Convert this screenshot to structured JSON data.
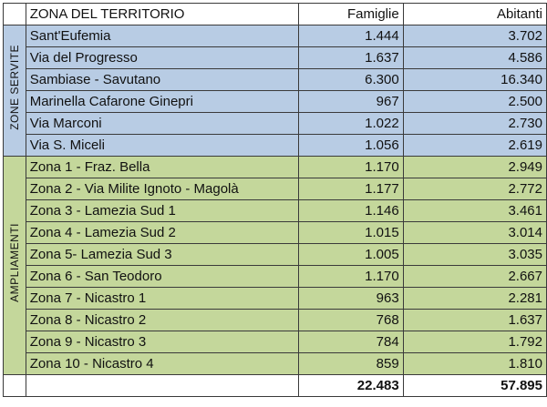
{
  "header": {
    "zona": "ZONA DEL TERRITORIO",
    "famiglie": "Famiglie",
    "abitanti": "Abitanti"
  },
  "groups": [
    {
      "label": "ZONE SERVITE",
      "color": "#b8cce4",
      "rows": [
        {
          "zona": "Sant'Eufemia",
          "famiglie": "1.444",
          "abitanti": "3.702"
        },
        {
          "zona": "Via del Progresso",
          "famiglie": "1.637",
          "abitanti": "4.586"
        },
        {
          "zona": "Sambiase - Savutano",
          "famiglie": "6.300",
          "abitanti": "16.340"
        },
        {
          "zona": "Marinella Cafarone Ginepri",
          "famiglie": "967",
          "abitanti": "2.500"
        },
        {
          "zona": "Via Marconi",
          "famiglie": "1.022",
          "abitanti": "2.730"
        },
        {
          "zona": "Via S. Miceli",
          "famiglie": "1.056",
          "abitanti": "2.619"
        }
      ]
    },
    {
      "label": "AMPLIAMENTI",
      "color": "#c4d79b",
      "rows": [
        {
          "zona": "Zona 1 - Fraz. Bella",
          "famiglie": "1.170",
          "abitanti": "2.949"
        },
        {
          "zona": "Zona 2 - Via Milite Ignoto - Magolà",
          "famiglie": "1.177",
          "abitanti": "2.772"
        },
        {
          "zona": "Zona 3 - Lamezia Sud 1",
          "famiglie": "1.146",
          "abitanti": "3.461"
        },
        {
          "zona": "Zona 4 - Lamezia Sud 2",
          "famiglie": "1.015",
          "abitanti": "3.014"
        },
        {
          "zona": "Zona 5-  Lamezia Sud 3",
          "famiglie": "1.005",
          "abitanti": "3.035"
        },
        {
          "zona": "Zona 6 - San Teodoro",
          "famiglie": "1.170",
          "abitanti": "2.667"
        },
        {
          "zona": "Zona 7 -  Nicastro 1",
          "famiglie": "963",
          "abitanti": "2.281"
        },
        {
          "zona": "Zona 8 -  Nicastro 2",
          "famiglie": "768",
          "abitanti": "1.637"
        },
        {
          "zona": "Zona 9 -   Nicastro 3",
          "famiglie": "784",
          "abitanti": "1.792"
        },
        {
          "zona": "Zona 10 - Nicastro 4",
          "famiglie": "859",
          "abitanti": "1.810"
        }
      ]
    }
  ],
  "totals": {
    "famiglie": "22.483",
    "abitanti": "57.895"
  }
}
